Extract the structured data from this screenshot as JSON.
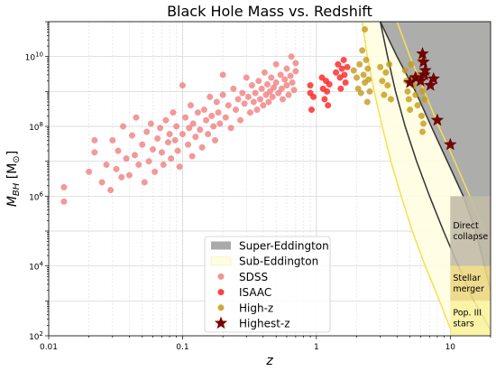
{
  "chart_data": {
    "type": "scatter",
    "title": "Black Hole Mass vs. Redshift",
    "xlabel": "z",
    "ylabel": "M_BH [M_⊙]",
    "ylabel_main": "M",
    "ylabel_sub": "BH",
    "ylabel_units": " [M",
    "ylabel_units_sub": "⊙",
    "ylabel_close": "]",
    "xscale": "log",
    "yscale": "log",
    "xlim": [
      0.01,
      20
    ],
    "ylim": [
      100,
      100000000000
    ],
    "x_ticks": [
      {
        "value": 0.01,
        "label": "0.01"
      },
      {
        "value": 0.1,
        "label": "0.1"
      },
      {
        "value": 1,
        "label": "1"
      },
      {
        "value": 10,
        "label": "10"
      }
    ],
    "y_ticks": [
      {
        "value": 100,
        "base": "10",
        "exp": "2"
      },
      {
        "value": 10000,
        "base": "10",
        "exp": "4"
      },
      {
        "value": 1000000,
        "base": "10",
        "exp": "6"
      },
      {
        "value": 100000000,
        "base": "10",
        "exp": "8"
      },
      {
        "value": 10000000000,
        "base": "10",
        "exp": "10"
      }
    ],
    "grid": true,
    "legend_position": "bottom-center",
    "colors": {
      "sdss": "#f08080",
      "isaac": "#ff2020",
      "highz": "#c49a1c",
      "highest": "#7b0000",
      "super_eddington": "#a9a9a9",
      "sub_eddington": "#fffde0",
      "eddington_line": "#333333",
      "sub_eddington_line": "#f5e050"
    },
    "legend": [
      {
        "key": "super_eddington",
        "label": "Super-Eddington",
        "marker": "rect-gray"
      },
      {
        "key": "sub_eddington",
        "label": "Sub-Eddington",
        "marker": "rect-yellow"
      },
      {
        "key": "sdss",
        "label": "SDSS",
        "marker": "circle-sdss"
      },
      {
        "key": "isaac",
        "label": "ISAAC",
        "marker": "circle-isaac"
      },
      {
        "key": "highz",
        "label": "High-z",
        "marker": "circle-highz"
      },
      {
        "key": "highest",
        "label": "Highest-z",
        "marker": "star"
      }
    ],
    "seed_regions": [
      {
        "label_lines": [
          "Direct",
          "collapse"
        ],
        "ymin": 10000,
        "ymax": 1000000,
        "color": "#c2bba8"
      },
      {
        "label_lines": [
          "Stellar",
          "merger"
        ],
        "ymin": 1000,
        "ymax": 10000,
        "color": "#ecd884"
      },
      {
        "label_lines": [
          "Pop. III",
          "stars"
        ],
        "ymin": 100,
        "ymax": 1000,
        "color": "#fbf3a0"
      }
    ],
    "seed_region_xmin": 10,
    "eddington_curves": {
      "super_eddington": [
        [
          3.0,
          100000000000
        ],
        [
          4.0,
          10000000000
        ],
        [
          5.5,
          1000000000
        ],
        [
          7.2,
          100000000
        ],
        [
          9.5,
          10000000
        ],
        [
          12.5,
          1000000
        ],
        [
          15.5,
          100000
        ],
        [
          18.0,
          10000
        ],
        [
          20.0,
          2000
        ]
      ],
      "sub_eddington_outer": [
        [
          2.2,
          100000000000
        ],
        [
          2.4,
          10000000000
        ],
        [
          2.7,
          1000000000
        ],
        [
          3.1,
          100000000
        ],
        [
          3.6,
          10000000
        ],
        [
          4.3,
          1000000
        ],
        [
          5.2,
          100000
        ],
        [
          6.5,
          10000
        ],
        [
          8.3,
          1000
        ],
        [
          10.5,
          100
        ]
      ],
      "sub_eddington_inner": [
        [
          4.0,
          100000000000
        ],
        [
          5.0,
          10000000000
        ],
        [
          6.4,
          1000000000
        ],
        [
          8.2,
          100000000
        ],
        [
          10.8,
          10000000
        ],
        [
          14.0,
          1000000
        ],
        [
          18.0,
          100000
        ],
        [
          20.0,
          50000
        ]
      ],
      "eddington_line_dark": [
        [
          3.0,
          100000000000
        ],
        [
          3.4,
          10000000000
        ],
        [
          3.9,
          1000000000
        ],
        [
          4.6,
          100000000
        ],
        [
          5.6,
          10000000
        ],
        [
          7.0,
          1000000
        ],
        [
          8.9,
          100000
        ],
        [
          11.5,
          10000
        ],
        [
          15.0,
          1000
        ],
        [
          20.0,
          150
        ]
      ]
    },
    "series": [
      {
        "name": "SDSS",
        "color": "#f08080",
        "points": [
          [
            0.013,
            1800000
          ],
          [
            0.013,
            700000
          ],
          [
            0.02,
            5000000
          ],
          [
            0.022,
            18000000
          ],
          [
            0.022,
            40000000
          ],
          [
            0.025,
            2500000
          ],
          [
            0.027,
            8000000
          ],
          [
            0.029,
            1500000
          ],
          [
            0.03,
            40000000
          ],
          [
            0.032,
            6000000
          ],
          [
            0.033,
            20000000
          ],
          [
            0.035,
            3500000
          ],
          [
            0.036,
            100000000
          ],
          [
            0.038,
            12000000
          ],
          [
            0.04,
            4000000
          ],
          [
            0.042,
            55000000
          ],
          [
            0.044,
            15000000
          ],
          [
            0.045,
            180000000
          ],
          [
            0.047,
            8000000
          ],
          [
            0.05,
            30000000
          ],
          [
            0.052,
            2500000
          ],
          [
            0.054,
            70000000
          ],
          [
            0.056,
            10000000
          ],
          [
            0.058,
            120000000
          ],
          [
            0.06,
            22000000
          ],
          [
            0.062,
            5000000
          ],
          [
            0.065,
            45000000
          ],
          [
            0.068,
            90000000
          ],
          [
            0.07,
            18000000
          ],
          [
            0.072,
            8000000
          ],
          [
            0.075,
            150000000
          ],
          [
            0.078,
            35000000
          ],
          [
            0.08,
            60000000
          ],
          [
            0.082,
            12000000
          ],
          [
            0.085,
            250000000
          ],
          [
            0.088,
            40000000
          ],
          [
            0.09,
            100000000
          ],
          [
            0.092,
            20000000
          ],
          [
            0.095,
            7000000
          ],
          [
            0.1,
            1500000000
          ],
          [
            0.1,
            60000000
          ],
          [
            0.105,
            180000000
          ],
          [
            0.11,
            30000000
          ],
          [
            0.112,
            90000000
          ],
          [
            0.115,
            400000000
          ],
          [
            0.118,
            14000000
          ],
          [
            0.12,
            120000000
          ],
          [
            0.125,
            50000000
          ],
          [
            0.13,
            250000000
          ],
          [
            0.135,
            80000000
          ],
          [
            0.14,
            25000000
          ],
          [
            0.145,
            300000000
          ],
          [
            0.15,
            150000000
          ],
          [
            0.155,
            60000000
          ],
          [
            0.16,
            700000000
          ],
          [
            0.165,
            200000000
          ],
          [
            0.17,
            100000000
          ],
          [
            0.175,
            40000000
          ],
          [
            0.18,
            500000000
          ],
          [
            0.185,
            250000000
          ],
          [
            0.19,
            120000000
          ],
          [
            0.2,
            3000000000
          ],
          [
            0.2,
            800000000
          ],
          [
            0.21,
            180000000
          ],
          [
            0.22,
            400000000
          ],
          [
            0.23,
            90000000
          ],
          [
            0.24,
            1200000000
          ],
          [
            0.25,
            300000000
          ],
          [
            0.26,
            600000000
          ],
          [
            0.27,
            150000000
          ],
          [
            0.28,
            900000000
          ],
          [
            0.29,
            450000000
          ],
          [
            0.3,
            2500000000
          ],
          [
            0.31,
            700000000
          ],
          [
            0.32,
            250000000
          ],
          [
            0.33,
            1500000000
          ],
          [
            0.34,
            500000000
          ],
          [
            0.35,
            900000000
          ],
          [
            0.36,
            300000000
          ],
          [
            0.37,
            2000000000
          ],
          [
            0.38,
            600000000
          ],
          [
            0.39,
            1200000000
          ],
          [
            0.4,
            400000000
          ],
          [
            0.41,
            3500000000
          ],
          [
            0.42,
            800000000
          ],
          [
            0.43,
            1600000000
          ],
          [
            0.44,
            500000000
          ],
          [
            0.45,
            1000000000
          ],
          [
            0.46,
            2500000000
          ],
          [
            0.47,
            700000000
          ],
          [
            0.48,
            1300000000
          ],
          [
            0.5,
            6000000000
          ],
          [
            0.5,
            1800000000
          ],
          [
            0.52,
            900000000
          ],
          [
            0.54,
            3000000000
          ],
          [
            0.55,
            1200000000
          ],
          [
            0.56,
            600000000
          ],
          [
            0.58,
            2200000000
          ],
          [
            0.6,
            1500000000
          ],
          [
            0.6,
            4500000000
          ],
          [
            0.62,
            800000000
          ],
          [
            0.64,
            2800000000
          ],
          [
            0.65,
            10000000000
          ],
          [
            0.66,
            1800000000
          ],
          [
            0.68,
            1100000000
          ],
          [
            0.7,
            3800000000
          ],
          [
            0.7,
            6500000000
          ]
        ]
      },
      {
        "name": "ISAAC",
        "color": "#ff2020",
        "points": [
          [
            0.9,
            1500000000
          ],
          [
            0.9,
            900000000
          ],
          [
            0.92,
            300000000
          ],
          [
            0.95,
            700000000
          ],
          [
            1.1,
            2500000000
          ],
          [
            1.12,
            1200000000
          ],
          [
            1.15,
            600000000
          ],
          [
            1.18,
            2000000000
          ],
          [
            1.2,
            1000000000
          ],
          [
            1.22,
            400000000
          ],
          [
            1.25,
            1600000000
          ],
          [
            1.4,
            3500000000
          ],
          [
            1.45,
            6000000000
          ],
          [
            1.5,
            2500000000
          ],
          [
            1.52,
            1200000000
          ],
          [
            1.55,
            4500000000
          ],
          [
            1.6,
            8000000000
          ],
          [
            1.62,
            3000000000
          ],
          [
            1.65,
            1800000000
          ],
          [
            1.7,
            5000000000
          ]
        ]
      },
      {
        "name": "High-z",
        "color": "#c49a1c",
        "points": [
          [
            1.9,
            4000000000
          ],
          [
            2.0,
            2500000000
          ],
          [
            2.05,
            1200000000
          ],
          [
            2.1,
            6000000000
          ],
          [
            2.15,
            900000000
          ],
          [
            2.2,
            15000000000
          ],
          [
            2.25,
            3000000000
          ],
          [
            2.3,
            1800000000
          ],
          [
            2.35,
            8000000000
          ],
          [
            2.4,
            500000000
          ],
          [
            2.42,
            4500000000
          ],
          [
            2.45,
            2200000000
          ],
          [
            2.5,
            1000000000
          ],
          [
            2.3,
            60000000000
          ],
          [
            3.0,
            5000000000
          ],
          [
            3.1,
            2000000000
          ],
          [
            3.2,
            800000000
          ],
          [
            3.3,
            3500000000
          ],
          [
            3.4,
            1500000000
          ],
          [
            3.5,
            6000000000
          ],
          [
            3.6,
            600000000
          ],
          [
            4.6,
            4000000000
          ],
          [
            4.7,
            2000000000
          ],
          [
            4.8,
            1000000000
          ],
          [
            4.9,
            600000000
          ],
          [
            5.0,
            300000000
          ],
          [
            5.1,
            6000000000
          ],
          [
            5.2,
            2500000000
          ],
          [
            5.3,
            1500000000
          ],
          [
            5.5,
            800000000
          ],
          [
            5.7,
            400000000
          ],
          [
            5.8,
            3000000000
          ],
          [
            6.0,
            1800000000
          ],
          [
            6.1,
            200000000
          ],
          [
            6.2,
            1000000000
          ],
          [
            6.3,
            120000000
          ],
          [
            6.4,
            600000000
          ],
          [
            6.0,
            8000000000
          ],
          [
            6.2,
            70000000
          ]
        ]
      },
      {
        "name": "Highest-z",
        "color": "#7b0000",
        "points": [
          [
            5.0,
            1800000000
          ],
          [
            5.5,
            2500000000
          ],
          [
            6.0,
            2000000000
          ],
          [
            6.2,
            12000000000
          ],
          [
            6.3,
            7000000000
          ],
          [
            6.4,
            3000000000
          ],
          [
            6.5,
            4000000000
          ],
          [
            7.1,
            1500000000
          ],
          [
            7.5,
            2300000000
          ],
          [
            8.0,
            150000000
          ],
          [
            10.0,
            30000000
          ]
        ]
      }
    ]
  }
}
